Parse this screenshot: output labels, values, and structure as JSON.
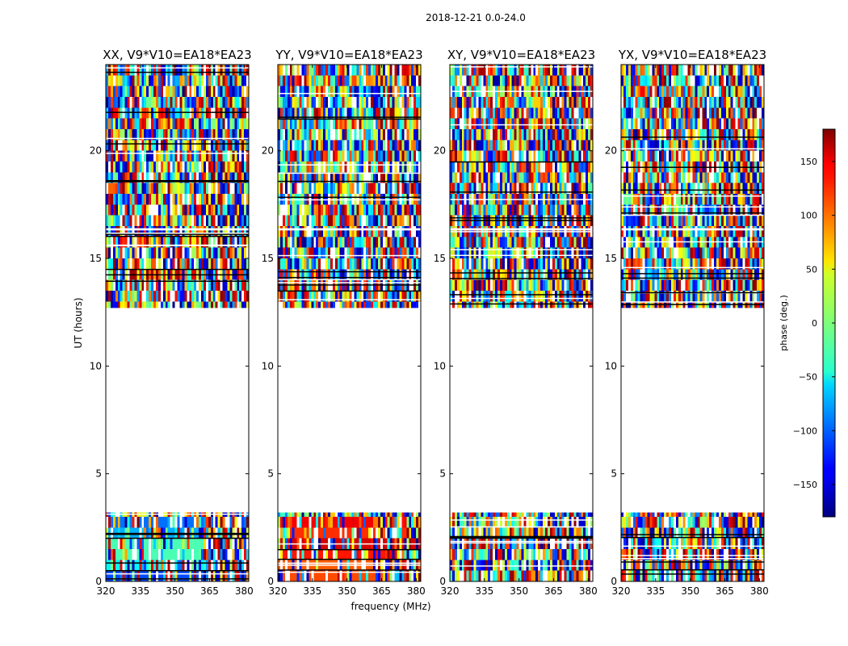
{
  "chart_data": {
    "type": "heatmap",
    "title": "2018-12-21 0.0-24.0",
    "xlabel": "frequency (MHz)",
    "ylabel": "UT (hours)",
    "xlim": [
      320,
      382
    ],
    "ylim": [
      0,
      24
    ],
    "x_ticks": [
      320,
      335,
      350,
      365,
      380
    ],
    "y_ticks": [
      0,
      5,
      10,
      15,
      20
    ],
    "colorbar": {
      "label": "phase (deg.)",
      "range": [
        -180,
        180
      ],
      "ticks": [
        150,
        100,
        50,
        0,
        -50,
        -100,
        -150
      ],
      "tick_labels": [
        "150",
        "100",
        "50",
        "0",
        "−50",
        "−100",
        "−150"
      ],
      "colormap": "jet"
    },
    "data_blocks_ut": [
      [
        0.0,
        3.2
      ],
      [
        12.7,
        16.3
      ],
      [
        16.4,
        24.0
      ]
    ],
    "panels": [
      {
        "title": "XX, V9*V10=EA18*EA23"
      },
      {
        "title": "YY, V9*V10=EA18*EA23"
      },
      {
        "title": "XY, V9*V10=EA18*EA23"
      },
      {
        "title": "YX, V9*V10=EA18*EA23"
      }
    ]
  }
}
